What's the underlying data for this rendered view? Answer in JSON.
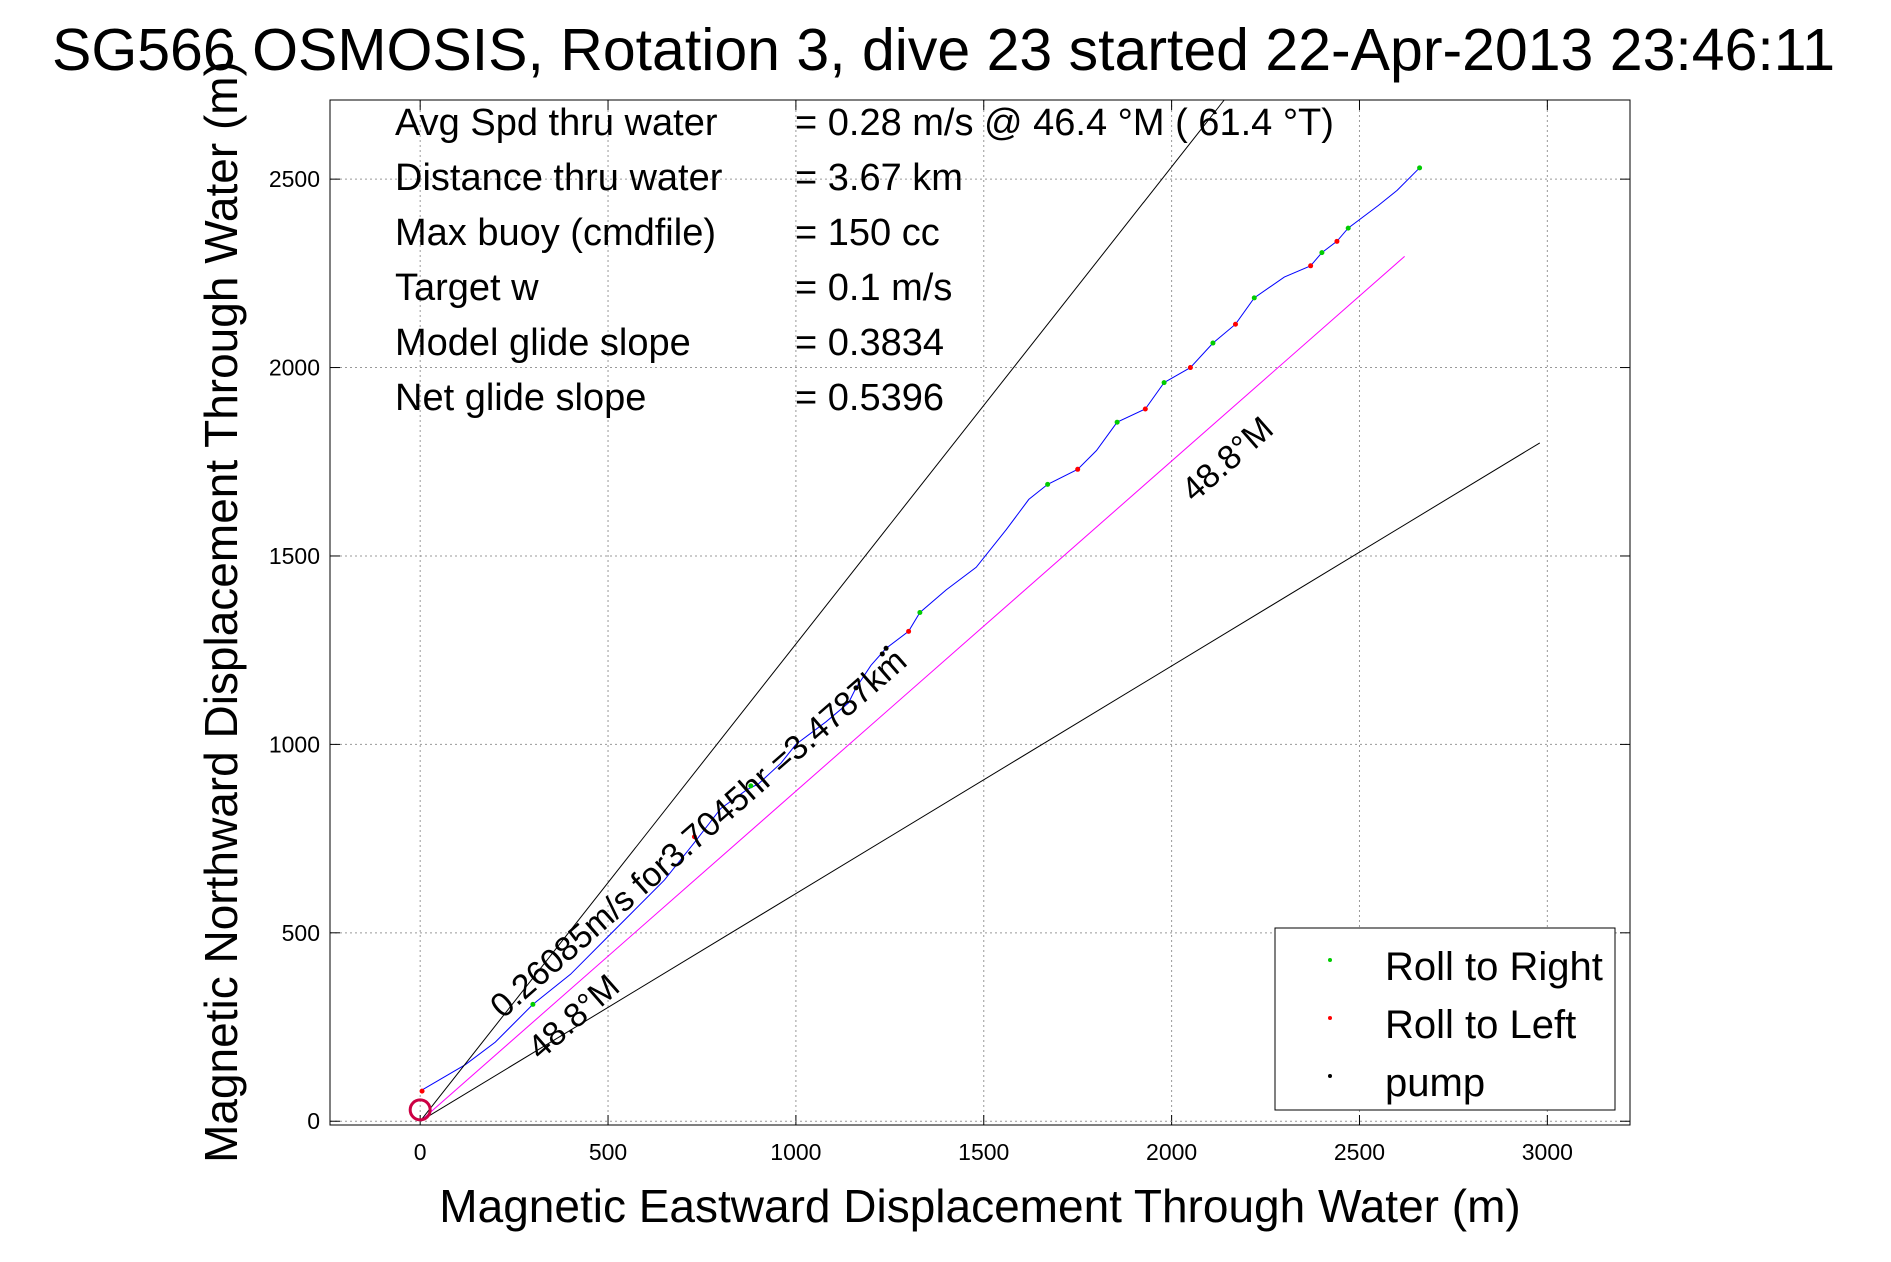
{
  "chart_data": {
    "type": "line",
    "title": "SG566 OSMOSIS, Rotation 3, dive 23 started 22-Apr-2013 23:46:11",
    "xlabel": "Magnetic Eastward Displacement Through Water (m)",
    "ylabel": "Magnetic Northward Displacement Through Water (m)",
    "xlim": [
      -240,
      3220
    ],
    "ylim": [
      -10,
      2710
    ],
    "xticks": [
      0,
      500,
      1000,
      1500,
      2000,
      2500,
      3000
    ],
    "yticks": [
      0,
      500,
      1000,
      1500,
      2000,
      2500
    ],
    "grid": true,
    "legend_position": "bottom-right",
    "info_lines": [
      {
        "label": "Avg Spd thru water",
        "value": "=  0.28 m/s @  46.4 °M ( 61.4 °T)"
      },
      {
        "label": "Distance thru water",
        "value": "=  3.67 km"
      },
      {
        "label": "Max buoy (cmdfile)",
        "value": "= 150 cc"
      },
      {
        "label": "Target w",
        "value": "= 0.1 m/s"
      },
      {
        "label": "Model glide slope",
        "value": "= 0.3834"
      },
      {
        "label": "Net glide slope",
        "value": "= 0.5396"
      }
    ],
    "annotations": [
      {
        "text": "0.26085m/s for3.7045hr =3.4787km",
        "x": 220,
        "y": 270,
        "angle_deg": 41.2
      },
      {
        "text": "48.8°M",
        "x": 320,
        "y": 160,
        "angle_deg": 41.2
      },
      {
        "text": "48.8°M",
        "x": 2060,
        "y": 1640,
        "angle_deg": 41.2
      }
    ],
    "series": [
      {
        "name": "",
        "color": "#0000ff",
        "x": [
          0,
          120,
          200,
          300,
          400,
          500,
          560,
          650,
          730,
          800,
          870,
          900,
          960,
          1000,
          1080,
          1140,
          1160,
          1200,
          1240,
          1300,
          1330,
          1400,
          1480,
          1560,
          1620,
          1670,
          1750,
          1800,
          1855,
          1930,
          1980,
          2050,
          2110,
          2170,
          2220,
          2300,
          2370,
          2400,
          2440,
          2470,
          2550,
          2600,
          2660
        ],
        "y": [
          80,
          150,
          210,
          310,
          390,
          490,
          550,
          640,
          740,
          830,
          880,
          895,
          950,
          1000,
          1060,
          1110,
          1150,
          1210,
          1255,
          1300,
          1350,
          1410,
          1470,
          1570,
          1650,
          1690,
          1730,
          1780,
          1855,
          1890,
          1960,
          2000,
          2065,
          2115,
          2185,
          2240,
          2270,
          2305,
          2335,
          2370,
          2430,
          2470,
          2530
        ]
      },
      {
        "name": "",
        "color": "#ff00ff",
        "x": [
          0,
          2620
        ],
        "y": [
          0,
          2295
        ]
      },
      {
        "name": "",
        "color": "#000000",
        "x": [
          0,
          2140
        ],
        "y": [
          0,
          2710
        ]
      },
      {
        "name": "",
        "color": "#000000",
        "x": [
          0,
          2980
        ],
        "y": [
          0,
          1800
        ]
      }
    ],
    "markers": [
      {
        "name": "Roll to Right",
        "color": "#00cc00",
        "x": [
          300,
          880,
          1330,
          1670,
          1855,
          1980,
          2110,
          2220,
          2400,
          2470,
          2660
        ],
        "y": [
          310,
          890,
          1350,
          1690,
          1855,
          1960,
          2065,
          2185,
          2305,
          2370,
          2530
        ]
      },
      {
        "name": "Roll to Left",
        "color": "#ff0000",
        "x": [
          5,
          730,
          1300,
          1750,
          1930,
          2050,
          2170,
          2370,
          2440
        ],
        "y": [
          80,
          755,
          1300,
          1730,
          1890,
          2000,
          2115,
          2270,
          2335
        ]
      },
      {
        "name": "pump",
        "color": "#000000",
        "x": [
          1160,
          1230,
          1240
        ],
        "y": [
          1150,
          1240,
          1255
        ]
      }
    ],
    "start_circle": {
      "x": 0,
      "y": 30,
      "color": "#cc0044"
    }
  }
}
